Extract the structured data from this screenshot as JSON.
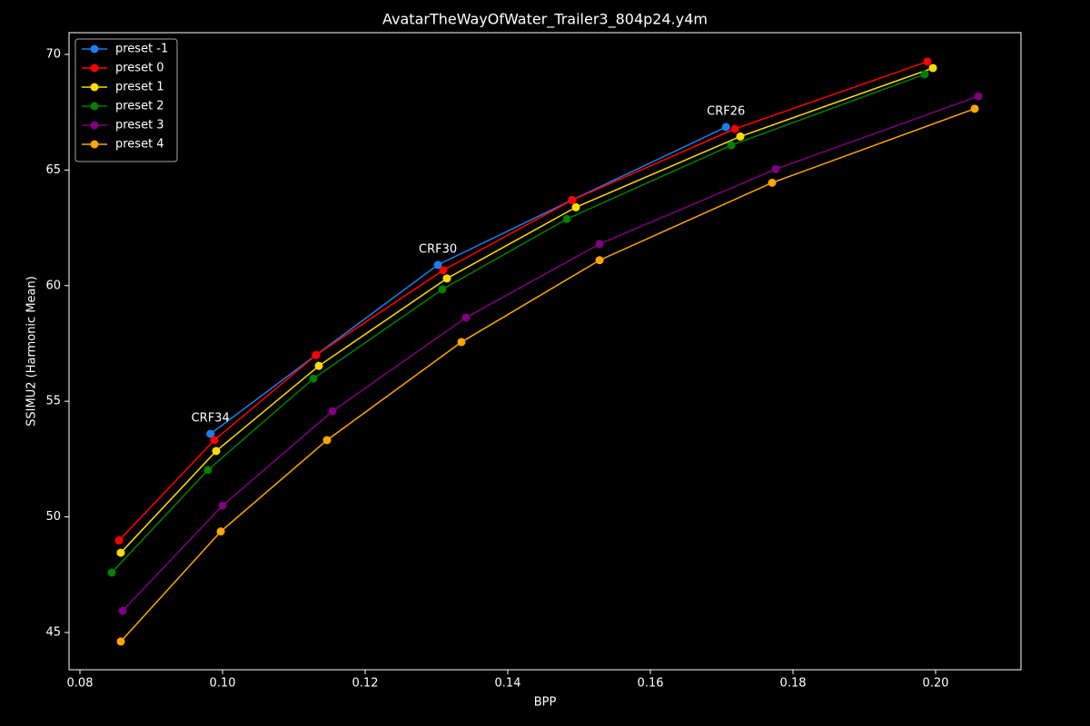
{
  "chart_data": {
    "type": "line",
    "title": "AvatarTheWayOfWater_Trailer3_804p24.y4m",
    "x_label": "BPP",
    "y_label": "SSIMU2 (Harmonic Mean)",
    "xlim": [
      0.07847,
      0.21197
    ],
    "ylim": [
      43.39,
      70.94
    ],
    "xticks": [
      0.08,
      {
        "value": 0.1,
        "label": "0.10"
      },
      0.12,
      0.14,
      0.16,
      0.18,
      {
        "value": 0.2,
        "label": "0.20"
      }
    ],
    "yticks": [
      45,
      50,
      55,
      60,
      65,
      70
    ],
    "grid": false,
    "legend": "upper left",
    "series": [
      {
        "name": "preset -1",
        "color": "#1a80f0",
        "x": [
          0.0983,
          0.1131,
          0.1302,
          0.149,
          0.1706
        ],
        "values": [
          53.59,
          57.0,
          60.9,
          63.7,
          66.86
        ]
      },
      {
        "name": "preset 0",
        "color": "#ff0000",
        "x": [
          0.08548,
          0.09885,
          0.11312,
          0.13096,
          0.14904,
          0.17185,
          0.19885
        ],
        "values": [
          48.98,
          53.32,
          57.0,
          60.67,
          63.7,
          66.78,
          69.69
        ]
      },
      {
        "name": "preset 1",
        "color": "#ffdd00",
        "x": [
          0.08573,
          0.09911,
          0.1135,
          0.13146,
          0.14955,
          0.17261,
          0.19962
        ],
        "values": [
          48.45,
          52.85,
          56.53,
          60.31,
          63.39,
          66.45,
          69.41
        ]
      },
      {
        "name": "preset 2",
        "color": "#008000",
        "x": [
          0.08446,
          0.09796,
          0.11274,
          0.13083,
          0.14828,
          0.17134,
          0.19847
        ],
        "values": [
          47.59,
          52.03,
          55.98,
          59.84,
          62.88,
          66.07,
          69.14
        ]
      },
      {
        "name": "preset 3",
        "color": "#800080",
        "x": [
          0.08599,
          0.1,
          0.11541,
          0.13414,
          0.15287,
          0.17758,
          0.20599
        ],
        "values": [
          45.94,
          50.49,
          54.57,
          58.62,
          61.8,
          65.04,
          68.19
        ]
      },
      {
        "name": "preset 4",
        "color": "#ffa500",
        "x": [
          0.08573,
          0.09975,
          0.11465,
          0.1335,
          0.15287,
          0.17707,
          0.20548
        ],
        "values": [
          44.61,
          49.37,
          53.32,
          57.56,
          61.1,
          64.45,
          67.65
        ]
      }
    ],
    "annotations": [
      {
        "text": "CRF34",
        "x": 0.0983,
        "y": 53.59
      },
      {
        "text": "CRF30",
        "x": 0.1302,
        "y": 60.9
      },
      {
        "text": "CRF26",
        "x": 0.1706,
        "y": 66.86
      }
    ]
  }
}
